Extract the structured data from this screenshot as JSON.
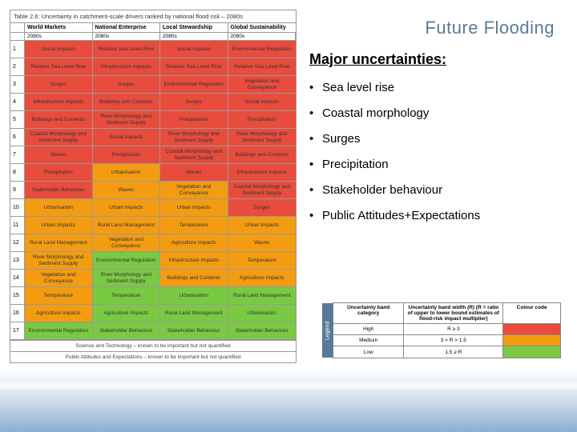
{
  "header": {
    "title": "Future Flooding"
  },
  "table": {
    "title": "Table 2.6: Uncertainty in catchment-scale drivers ranked by national flood risk – 2080s",
    "column_groups": [
      "World Markets",
      "National Enterprise",
      "Local Stewardship",
      "Global Sustainability"
    ],
    "sub_label": "2080s",
    "colors": {
      "high": "#e84c3d",
      "medium": "#f39c12",
      "low": "#7ac943"
    },
    "rows": [
      {
        "rank": "1",
        "cells": [
          {
            "t": "Social Impacts",
            "c": "high"
          },
          {
            "t": "Relative Sea Level Rise",
            "c": "high"
          },
          {
            "t": "Social Impacts",
            "c": "high"
          },
          {
            "t": "Environmental Regulation",
            "c": "high"
          }
        ]
      },
      {
        "rank": "2",
        "cells": [
          {
            "t": "Relative Sea Level Rise",
            "c": "high"
          },
          {
            "t": "Infrastructure Impacts",
            "c": "high"
          },
          {
            "t": "Relative Sea Level Rise",
            "c": "high"
          },
          {
            "t": "Relative Sea Level Rise",
            "c": "high"
          }
        ]
      },
      {
        "rank": "3",
        "cells": [
          {
            "t": "Surges",
            "c": "high"
          },
          {
            "t": "Surges",
            "c": "high"
          },
          {
            "t": "Environmental Regulation",
            "c": "high"
          },
          {
            "t": "Vegetation and Conveyance",
            "c": "high"
          }
        ]
      },
      {
        "rank": "4",
        "cells": [
          {
            "t": "Infrastructure Impacts",
            "c": "high"
          },
          {
            "t": "Buildings and Contents",
            "c": "high"
          },
          {
            "t": "Surges",
            "c": "high"
          },
          {
            "t": "Social Impacts",
            "c": "high"
          }
        ]
      },
      {
        "rank": "5",
        "cells": [
          {
            "t": "Buildings and Contents",
            "c": "high"
          },
          {
            "t": "River Morphology and Sediment Supply",
            "c": "high"
          },
          {
            "t": "Precipitation",
            "c": "high"
          },
          {
            "t": "Precipitation",
            "c": "high"
          }
        ]
      },
      {
        "rank": "6",
        "cells": [
          {
            "t": "Coastal Morphology and Sediment Supply",
            "c": "high"
          },
          {
            "t": "Social Impacts",
            "c": "high"
          },
          {
            "t": "River Morphology and Sediment Supply",
            "c": "high"
          },
          {
            "t": "River Morphology and Sediment Supply",
            "c": "high"
          }
        ]
      },
      {
        "rank": "7",
        "cells": [
          {
            "t": "Waves",
            "c": "high"
          },
          {
            "t": "Precipitation",
            "c": "high"
          },
          {
            "t": "Coastal Morphology and Sediment Supply",
            "c": "high"
          },
          {
            "t": "Buildings and Contents",
            "c": "high"
          }
        ]
      },
      {
        "rank": "8",
        "cells": [
          {
            "t": "Precipitation",
            "c": "high"
          },
          {
            "t": "Urbanisation",
            "c": "medium"
          },
          {
            "t": "Waves",
            "c": "high"
          },
          {
            "t": "Infrastructure Impacts",
            "c": "high"
          }
        ]
      },
      {
        "rank": "9",
        "cells": [
          {
            "t": "Stakeholder Behaviour",
            "c": "high"
          },
          {
            "t": "Waves",
            "c": "medium"
          },
          {
            "t": "Vegetation and Conveyance",
            "c": "medium"
          },
          {
            "t": "Coastal Morphology and Sediment Supply",
            "c": "high"
          }
        ]
      },
      {
        "rank": "10",
        "cells": [
          {
            "t": "Urbanisation",
            "c": "medium"
          },
          {
            "t": "Urban Impacts",
            "c": "medium"
          },
          {
            "t": "Urban Impacts",
            "c": "medium"
          },
          {
            "t": "Surges",
            "c": "high"
          }
        ]
      },
      {
        "rank": "11",
        "cells": [
          {
            "t": "Urban Impacts",
            "c": "medium"
          },
          {
            "t": "Rural Land Management",
            "c": "medium"
          },
          {
            "t": "Temperature",
            "c": "medium"
          },
          {
            "t": "Urban Impacts",
            "c": "medium"
          }
        ]
      },
      {
        "rank": "12",
        "cells": [
          {
            "t": "Rural Land Management",
            "c": "medium"
          },
          {
            "t": "Vegetation and Conveyance",
            "c": "medium"
          },
          {
            "t": "Agriculture Impacts",
            "c": "medium"
          },
          {
            "t": "Waves",
            "c": "medium"
          }
        ]
      },
      {
        "rank": "13",
        "cells": [
          {
            "t": "River Morphology and Sediment Supply",
            "c": "medium"
          },
          {
            "t": "Environmental Regulation",
            "c": "low"
          },
          {
            "t": "Infrastructure Impacts",
            "c": "medium"
          },
          {
            "t": "Temperature",
            "c": "medium"
          }
        ]
      },
      {
        "rank": "14",
        "cells": [
          {
            "t": "Vegetation and Conveyance",
            "c": "medium"
          },
          {
            "t": "River Morphology and Sediment Supply",
            "c": "low"
          },
          {
            "t": "Buildings and Contents",
            "c": "medium"
          },
          {
            "t": "Agriculture Impacts",
            "c": "medium"
          }
        ]
      },
      {
        "rank": "15",
        "cells": [
          {
            "t": "Temperature",
            "c": "medium"
          },
          {
            "t": "Temperature",
            "c": "low"
          },
          {
            "t": "Urbanisation",
            "c": "low"
          },
          {
            "t": "Rural Land Management",
            "c": "low"
          }
        ]
      },
      {
        "rank": "16",
        "cells": [
          {
            "t": "Agriculture Impacts",
            "c": "medium"
          },
          {
            "t": "Agriculture Impacts",
            "c": "low"
          },
          {
            "t": "Rural Land Management",
            "c": "low"
          },
          {
            "t": "Urbanisation",
            "c": "low"
          }
        ]
      },
      {
        "rank": "17",
        "cells": [
          {
            "t": "Environmental Regulation",
            "c": "low"
          },
          {
            "t": "Stakeholder Behaviour",
            "c": "low"
          },
          {
            "t": "Stakeholder Behaviour",
            "c": "low"
          },
          {
            "t": "Stakeholder Behaviour",
            "c": "low"
          }
        ]
      }
    ],
    "footnotes": [
      "Science and Technology – known to be important but not quantified",
      "Public Attitudes and Expectations – known to be important but not quantified"
    ]
  },
  "right": {
    "heading": "Major uncertainties:",
    "items": [
      "Sea level rise",
      "Coastal morphology",
      "Surges",
      "Precipitation",
      "Stakeholder behaviour",
      "Public Attitudes+Expectations"
    ]
  },
  "legend": {
    "tab": "Legend",
    "headers": [
      "Uncertainty band category",
      "Uncertainty band width (R) (R = ratio of upper to lower bound estimates of flood-risk impact multiplier)",
      "Colour code"
    ],
    "rows": [
      {
        "label": "High",
        "cond": "R ≥ 3",
        "color": "#e84c3d"
      },
      {
        "label": "Medium",
        "cond": "3 > R > 1.5",
        "color": "#f39c12"
      },
      {
        "label": "Low",
        "cond": "1.5 ≥ R",
        "color": "#7ac943"
      }
    ]
  }
}
